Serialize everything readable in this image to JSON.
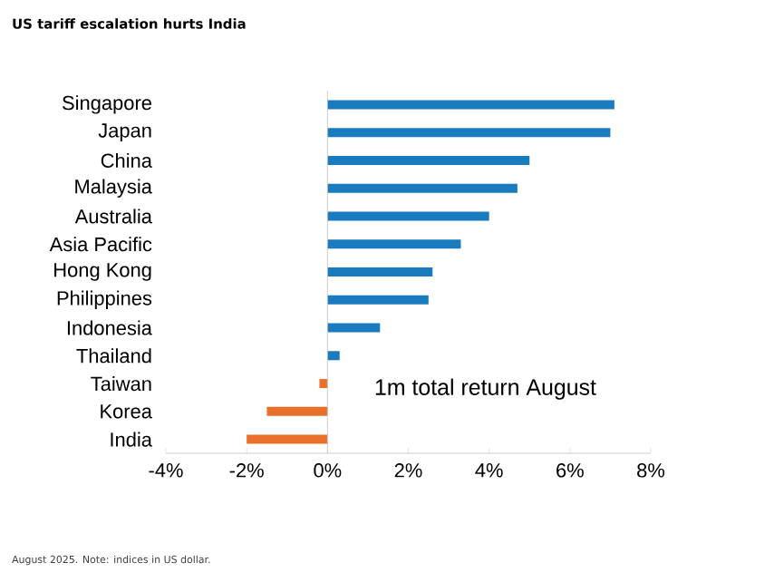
{
  "chart_data": {
    "type": "bar",
    "orientation": "horizontal",
    "title": "US tariff escalation hurts India",
    "categories": [
      "Singapore",
      "Japan",
      "China",
      "Malaysia",
      "Australia",
      "Asia Pacific",
      "Hong Kong",
      "Philippines",
      "Indonesia",
      "Thailand",
      "Taiwan",
      "Korea",
      "India"
    ],
    "values": [
      7.1,
      7.0,
      5.0,
      4.7,
      4.0,
      3.3,
      2.6,
      2.5,
      1.3,
      0.3,
      -0.2,
      -1.5,
      -2.0
    ],
    "colors": [
      "#1a7bbf",
      "#1a7bbf",
      "#1a7bbf",
      "#1a7bbf",
      "#1a7bbf",
      "#1a7bbf",
      "#1a7bbf",
      "#1a7bbf",
      "#1a7bbf",
      "#1a7bbf",
      "#e8702a",
      "#e8702a",
      "#e8702a"
    ],
    "xlim": [
      -4,
      8
    ],
    "xticks": [
      {
        "value": -4,
        "label": "-4%"
      },
      {
        "value": -2,
        "label": "-2%"
      },
      {
        "value": 0,
        "label": "0%"
      },
      {
        "value": 2,
        "label": "2%"
      },
      {
        "value": 4,
        "label": "4%"
      },
      {
        "value": 6,
        "label": "6%"
      },
      {
        "value": 8,
        "label": "8%"
      }
    ],
    "annotations": [
      "1m total return August",
      "August 2025. Note: indices in US dollar."
    ]
  }
}
